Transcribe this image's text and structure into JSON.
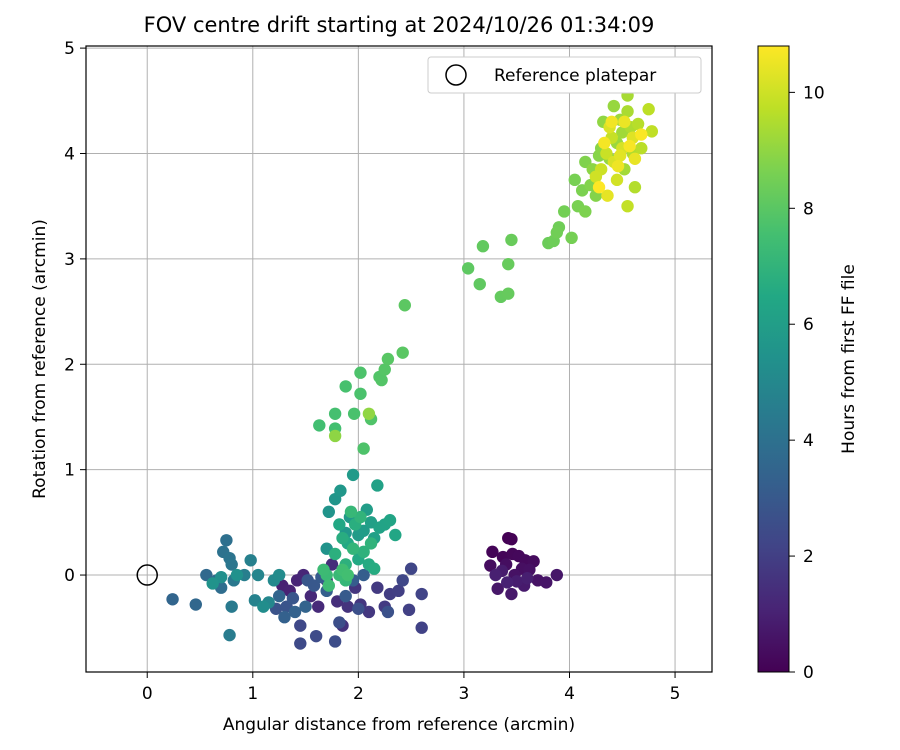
{
  "chart_data": {
    "type": "scatter",
    "title": "FOV centre drift starting at 2024/10/26 01:34:09",
    "xlabel": "Angular distance from reference (arcmin)",
    "ylabel": "Rotation from reference (arcmin)",
    "xlim": [
      -0.58,
      5.35
    ],
    "ylim": [
      -0.92,
      5.02
    ],
    "xticks": [
      0,
      1,
      2,
      3,
      4,
      5
    ],
    "yticks": [
      0,
      1,
      2,
      3,
      4,
      5
    ],
    "grid": true,
    "legend": {
      "position": "top-right",
      "entries": [
        "Reference platepar"
      ]
    },
    "reference_point": {
      "x": 0,
      "y": 0,
      "label": "Reference platepar"
    },
    "colorbar": {
      "label": "Hours from first FF file",
      "min": 0,
      "max": 10.8,
      "ticks": [
        0,
        2,
        4,
        6,
        8,
        10
      ],
      "colormap": "viridis"
    },
    "series": [
      {
        "color_value_hours": "0-1",
        "points": [
          [
            3.42,
            0.35
          ],
          [
            3.45,
            0.34
          ],
          [
            3.27,
            0.22
          ],
          [
            3.37,
            0.17
          ],
          [
            3.46,
            0.2
          ],
          [
            3.52,
            0.18
          ],
          [
            3.58,
            0.14
          ],
          [
            3.66,
            0.13
          ],
          [
            3.25,
            0.09
          ],
          [
            3.4,
            0.1
          ],
          [
            3.55,
            0.06
          ],
          [
            3.62,
            0.05
          ],
          [
            3.48,
            0.0
          ],
          [
            3.7,
            -0.05
          ],
          [
            3.78,
            -0.07
          ],
          [
            3.88,
            0.0
          ],
          [
            3.32,
            -0.13
          ],
          [
            3.45,
            -0.18
          ],
          [
            3.57,
            -0.1
          ],
          [
            3.36,
            0.04
          ],
          [
            3.5,
            -0.06
          ],
          [
            3.6,
            -0.03
          ],
          [
            3.3,
            0.0
          ],
          [
            3.41,
            -0.07
          ]
        ]
      },
      {
        "color_value_hours": "1-3.5",
        "points": [
          [
            1.28,
            -0.1
          ],
          [
            1.35,
            -0.15
          ],
          [
            1.42,
            -0.05
          ],
          [
            1.48,
            0.0
          ],
          [
            1.55,
            -0.2
          ],
          [
            1.62,
            -0.3
          ],
          [
            1.7,
            -0.05
          ],
          [
            1.75,
            0.1
          ],
          [
            1.8,
            -0.25
          ],
          [
            1.85,
            -0.48
          ],
          [
            1.9,
            -0.3
          ],
          [
            1.97,
            -0.12
          ],
          [
            2.02,
            -0.28
          ],
          [
            2.1,
            -0.35
          ],
          [
            2.18,
            -0.12
          ],
          [
            2.25,
            -0.3
          ],
          [
            2.3,
            -0.18
          ],
          [
            2.38,
            -0.15
          ],
          [
            2.48,
            -0.33
          ],
          [
            2.6,
            -0.5
          ],
          [
            2.6,
            -0.18
          ],
          [
            2.5,
            0.06
          ],
          [
            2.42,
            -0.05
          ],
          [
            1.45,
            -0.48
          ],
          [
            1.45,
            -0.65
          ],
          [
            1.6,
            -0.58
          ],
          [
            1.78,
            -0.63
          ],
          [
            1.82,
            -0.45
          ],
          [
            2.0,
            -0.32
          ],
          [
            2.28,
            -0.35
          ],
          [
            1.22,
            -0.32
          ],
          [
            1.32,
            -0.3
          ],
          [
            1.38,
            -0.22
          ],
          [
            1.52,
            -0.05
          ],
          [
            1.58,
            -0.1
          ],
          [
            1.65,
            -0.02
          ],
          [
            1.88,
            -0.2
          ],
          [
            1.95,
            -0.05
          ],
          [
            2.05,
            0.0
          ],
          [
            1.7,
            -0.15
          ],
          [
            1.3,
            -0.4
          ],
          [
            1.4,
            -0.35
          ],
          [
            1.5,
            -0.3
          ],
          [
            1.25,
            -0.2
          ]
        ]
      },
      {
        "color_value_hours": "3.5-5.5",
        "points": [
          [
            0.24,
            -0.23
          ],
          [
            0.46,
            -0.28
          ],
          [
            0.56,
            0.0
          ],
          [
            0.66,
            -0.05
          ],
          [
            0.7,
            -0.12
          ],
          [
            0.75,
            0.33
          ],
          [
            0.72,
            0.22
          ],
          [
            0.78,
            0.16
          ],
          [
            0.8,
            0.1
          ],
          [
            0.82,
            -0.05
          ],
          [
            0.8,
            -0.3
          ],
          [
            0.78,
            -0.57
          ],
          [
            0.92,
            0.0
          ],
          [
            0.98,
            0.14
          ],
          [
            1.02,
            -0.24
          ],
          [
            1.05,
            0.0
          ],
          [
            1.15,
            -0.26
          ],
          [
            1.2,
            -0.05
          ],
          [
            1.25,
            0.0
          ],
          [
            1.1,
            -0.3
          ],
          [
            0.7,
            -0.02
          ],
          [
            0.85,
            0.0
          ],
          [
            0.62,
            -0.08
          ]
        ]
      },
      {
        "color_value_hours": "5.5-7.5",
        "points": [
          [
            1.7,
            0.25
          ],
          [
            1.72,
            0.6
          ],
          [
            1.78,
            0.72
          ],
          [
            1.83,
            0.8
          ],
          [
            1.88,
            0.4
          ],
          [
            1.92,
            0.55
          ],
          [
            1.95,
            0.95
          ],
          [
            2.0,
            0.38
          ],
          [
            2.05,
            0.42
          ],
          [
            2.08,
            0.62
          ],
          [
            2.12,
            0.5
          ],
          [
            2.15,
            0.35
          ],
          [
            2.18,
            0.85
          ],
          [
            2.2,
            0.45
          ],
          [
            2.25,
            0.48
          ],
          [
            2.3,
            0.52
          ],
          [
            2.35,
            0.38
          ],
          [
            1.82,
            0.48
          ],
          [
            1.9,
            0.3
          ],
          [
            2.0,
            0.15
          ],
          [
            2.1,
            0.1
          ],
          [
            2.15,
            0.06
          ],
          [
            1.85,
            0.35
          ],
          [
            1.97,
            0.48
          ],
          [
            1.78,
            0.2
          ],
          [
            1.88,
            0.1
          ],
          [
            2.05,
            0.22
          ],
          [
            2.12,
            0.3
          ],
          [
            2.02,
            0.55
          ],
          [
            1.95,
            0.25
          ],
          [
            1.88,
            -0.05
          ],
          [
            1.93,
            0.6
          ],
          [
            1.82,
            0.0
          ],
          [
            1.7,
            0.0
          ],
          [
            1.67,
            0.05
          ],
          [
            1.72,
            -0.1
          ],
          [
            1.85,
            0.05
          ],
          [
            1.9,
            0.0
          ]
        ]
      },
      {
        "color_value_hours": "7.5-9",
        "points": [
          [
            1.63,
            1.42
          ],
          [
            1.78,
            1.39
          ],
          [
            1.78,
            1.53
          ],
          [
            1.88,
            1.79
          ],
          [
            1.96,
            1.53
          ],
          [
            2.02,
            1.72
          ],
          [
            2.02,
            1.92
          ],
          [
            2.05,
            1.2
          ],
          [
            2.12,
            1.48
          ],
          [
            2.2,
            1.88
          ],
          [
            2.22,
            1.85
          ],
          [
            2.25,
            1.95
          ],
          [
            2.28,
            2.05
          ],
          [
            2.42,
            2.11
          ],
          [
            2.44,
            2.56
          ],
          [
            3.04,
            2.91
          ],
          [
            3.15,
            2.76
          ],
          [
            3.18,
            3.12
          ],
          [
            3.35,
            2.64
          ],
          [
            3.42,
            2.67
          ],
          [
            3.42,
            2.95
          ],
          [
            3.45,
            3.18
          ],
          [
            3.8,
            3.15
          ],
          [
            3.85,
            3.17
          ],
          [
            3.9,
            3.3
          ],
          [
            3.88,
            3.25
          ],
          [
            3.95,
            3.45
          ],
          [
            4.02,
            3.2
          ],
          [
            4.05,
            3.75
          ],
          [
            4.08,
            3.5
          ],
          [
            4.12,
            3.65
          ],
          [
            4.15,
            3.45
          ],
          [
            4.15,
            3.92
          ],
          [
            4.2,
            3.7
          ],
          [
            4.25,
            3.6
          ],
          [
            4.28,
            3.98
          ],
          [
            4.3,
            4.05
          ],
          [
            4.22,
            3.85
          ],
          [
            1.78,
            1.32
          ],
          [
            2.1,
            1.53
          ]
        ]
      },
      {
        "color_value_hours": "9-10.8",
        "points": [
          [
            4.32,
            4.3
          ],
          [
            4.38,
            3.95
          ],
          [
            4.42,
            4.45
          ],
          [
            4.45,
            4.1
          ],
          [
            4.48,
            4.32
          ],
          [
            4.5,
            4.2
          ],
          [
            4.52,
            3.85
          ],
          [
            4.55,
            4.55
          ],
          [
            4.55,
            4.4
          ],
          [
            4.58,
            4.25
          ],
          [
            4.6,
            4.0
          ],
          [
            4.62,
            3.68
          ],
          [
            4.65,
            4.28
          ],
          [
            4.68,
            4.05
          ],
          [
            4.75,
            4.42
          ],
          [
            4.78,
            4.21
          ],
          [
            4.55,
            3.5
          ],
          [
            4.4,
            4.15
          ],
          [
            4.35,
            4.0
          ],
          [
            4.3,
            3.85
          ],
          [
            4.25,
            3.78
          ],
          [
            4.45,
            3.75
          ],
          [
            4.5,
            4.05
          ],
          [
            4.42,
            3.92
          ],
          [
            4.38,
            4.25
          ],
          [
            4.6,
            4.15
          ],
          [
            4.48,
            3.98
          ],
          [
            4.36,
            3.6
          ],
          [
            4.62,
            3.95
          ],
          [
            4.52,
            4.3
          ],
          [
            4.46,
            3.88
          ],
          [
            4.4,
            4.3
          ],
          [
            4.33,
            4.1
          ],
          [
            4.57,
            4.07
          ],
          [
            4.68,
            4.18
          ],
          [
            4.28,
            3.68
          ]
        ]
      }
    ]
  }
}
